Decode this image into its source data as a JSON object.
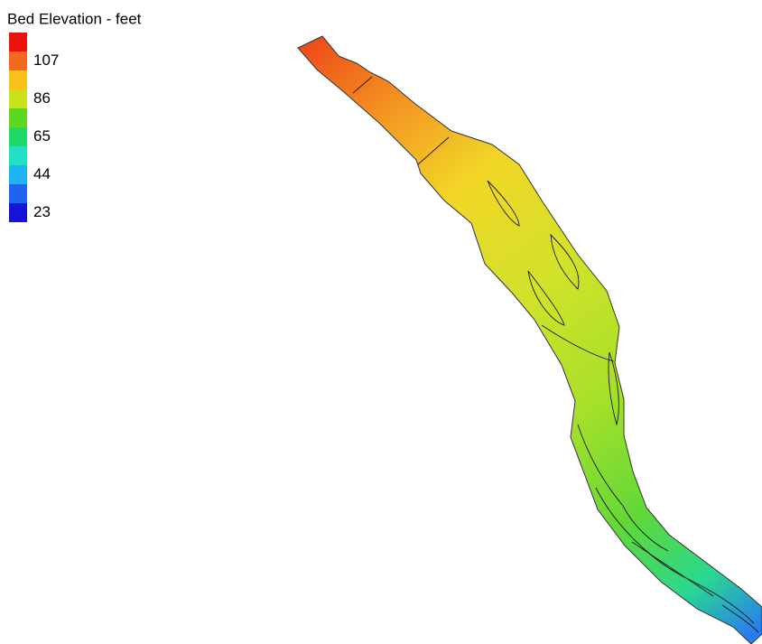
{
  "legend": {
    "title": "Bed Elevation - feet",
    "swatch_colors": [
      "#e8140c",
      "#f26a1e",
      "#f8c21a",
      "#c8e21c",
      "#5cd81e",
      "#1fd86a",
      "#22e0c8",
      "#1eb4f4",
      "#1e64f0",
      "#1414d8"
    ],
    "labels": [
      107,
      86,
      65,
      44,
      23
    ]
  }
}
